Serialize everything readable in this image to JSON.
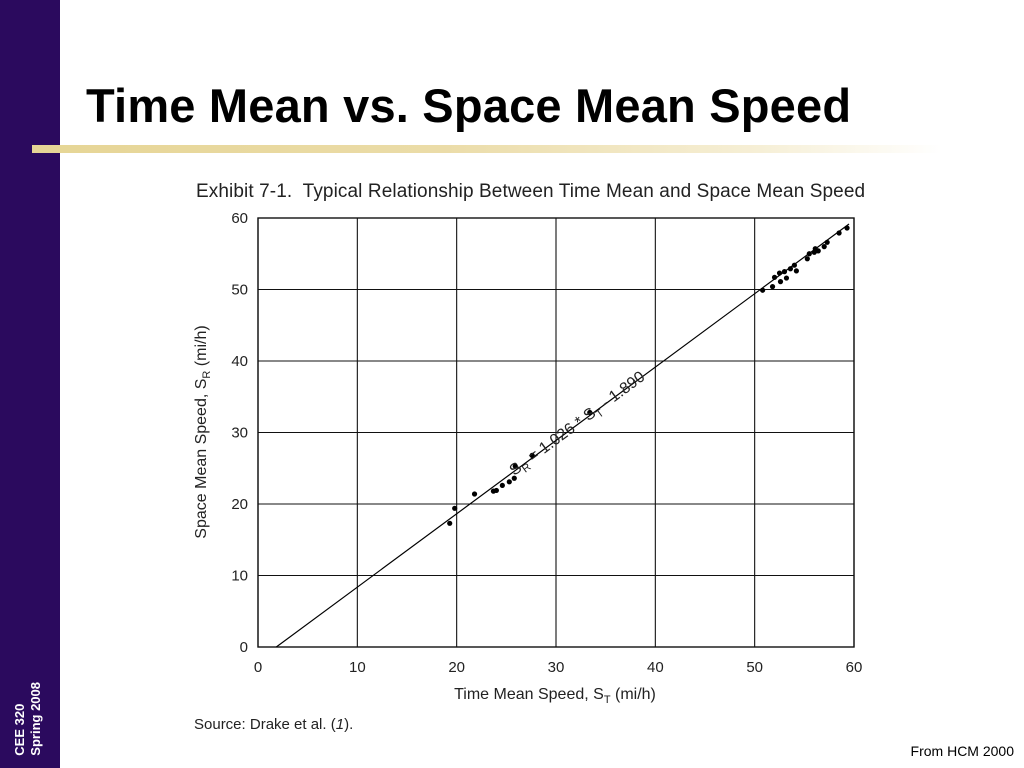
{
  "sidebar": {
    "course": "CEE 320",
    "term": "Spring 2008"
  },
  "slide": {
    "title": "Time Mean vs. Space Mean Speed",
    "credit": "From HCM 2000"
  },
  "exhibit": {
    "number": "Exhibit 7-1.",
    "caption": "Typical Relationship Between Time Mean and Space Mean Speed",
    "source_prefix": "Source: Drake et al. (",
    "source_ref": "1",
    "source_suffix": ")."
  },
  "colors": {
    "sidebar": "#2b0a5e",
    "rule": "#e6d595",
    "ink": "#000000"
  },
  "chart_data": {
    "type": "scatter",
    "xlabel": "Time Mean Speed, S",
    "xlabel_sub": "T",
    "xlabel_unit": " (mi/h)",
    "ylabel": "Space Mean Speed, S",
    "ylabel_sub": "R",
    "ylabel_unit": " (mi/h)",
    "xlim": [
      0,
      60
    ],
    "ylim": [
      0,
      60
    ],
    "xticks": [
      0,
      10,
      20,
      30,
      40,
      50,
      60
    ],
    "yticks": [
      0,
      10,
      20,
      30,
      40,
      50,
      60
    ],
    "grid": true,
    "fit_line": {
      "slope": 1.026,
      "intercept": -1.89,
      "x_range": [
        1.84,
        59.5
      ]
    },
    "annotation": {
      "label_prefix": "S",
      "label_sub1": "R",
      "label_mid": " = 1.026 * S",
      "label_sub2": "T",
      "label_suffix": " - 1.890",
      "anchor_x": 25.8,
      "anchor_y": 23.9
    },
    "points": [
      {
        "x": 19.3,
        "y": 17.3
      },
      {
        "x": 19.8,
        "y": 19.4
      },
      {
        "x": 21.8,
        "y": 21.4
      },
      {
        "x": 23.7,
        "y": 21.8
      },
      {
        "x": 24.0,
        "y": 21.9
      },
      {
        "x": 24.6,
        "y": 22.6
      },
      {
        "x": 25.3,
        "y": 23.1
      },
      {
        "x": 25.8,
        "y": 23.6
      },
      {
        "x": 25.9,
        "y": 25.3
      },
      {
        "x": 27.6,
        "y": 26.8
      },
      {
        "x": 33.4,
        "y": 32.8
      },
      {
        "x": 50.8,
        "y": 49.9
      },
      {
        "x": 51.8,
        "y": 50.4
      },
      {
        "x": 52.0,
        "y": 51.7
      },
      {
        "x": 52.5,
        "y": 52.3
      },
      {
        "x": 52.6,
        "y": 51.1
      },
      {
        "x": 53.0,
        "y": 52.5
      },
      {
        "x": 53.2,
        "y": 51.6
      },
      {
        "x": 53.6,
        "y": 52.9
      },
      {
        "x": 54.0,
        "y": 53.4
      },
      {
        "x": 54.2,
        "y": 52.6
      },
      {
        "x": 55.3,
        "y": 54.3
      },
      {
        "x": 55.5,
        "y": 55.0
      },
      {
        "x": 56.0,
        "y": 55.2
      },
      {
        "x": 56.1,
        "y": 55.7
      },
      {
        "x": 56.4,
        "y": 55.4
      },
      {
        "x": 57.0,
        "y": 56.0
      },
      {
        "x": 57.3,
        "y": 56.6
      },
      {
        "x": 58.5,
        "y": 57.9
      },
      {
        "x": 59.3,
        "y": 58.6
      }
    ]
  }
}
